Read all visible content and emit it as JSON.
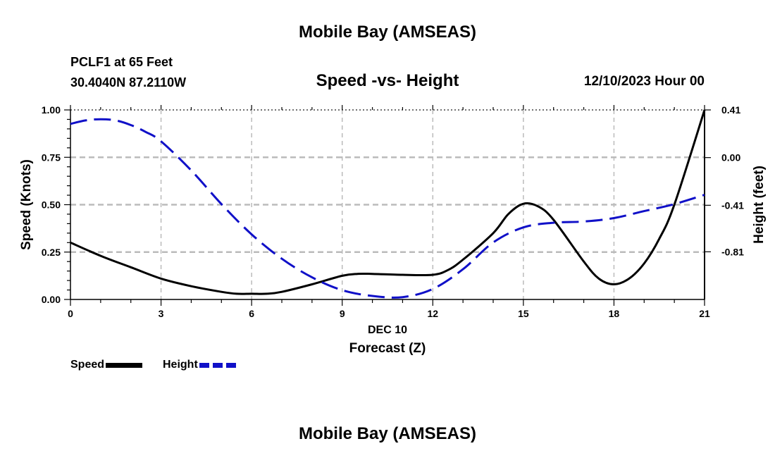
{
  "header": {
    "title": "Mobile Bay (AMSEAS)",
    "station": "PCLF1 at 65 Feet",
    "coords": "30.4040N  87.2110W",
    "chart_title": "Speed -vs- Height",
    "date": "12/10/2023 Hour 00"
  },
  "footer": {
    "title": "Mobile Bay (AMSEAS)"
  },
  "legend": {
    "speed_label": "Speed",
    "height_label": "Height"
  },
  "colors": {
    "speed": "#000000",
    "height": "#1010c8",
    "grid": "#bbbbbb"
  },
  "chart_data": {
    "type": "line",
    "title": "Speed -vs- Height",
    "xlabel": "Forecast (Z)",
    "xlabel_date": "DEC 10",
    "ylabel": "Speed (Knots)",
    "y2label": "Height (feet)",
    "xlim": [
      0,
      21
    ],
    "ylim": [
      0,
      1
    ],
    "y2lim": [
      -1.22,
      0.41
    ],
    "x_ticks": [
      0,
      3,
      6,
      9,
      12,
      15,
      18,
      21
    ],
    "x_tick_labels": [
      "0",
      "3",
      "6",
      "9",
      "12",
      "15",
      "18",
      "21"
    ],
    "y_ticks": [
      0,
      0.25,
      0.5,
      0.75,
      1.0
    ],
    "y_tick_labels": [
      "0.00",
      "0.25",
      "0.50",
      "0.75",
      "1.00"
    ],
    "y2_ticks": [
      0.41,
      0.0,
      -0.41,
      -0.81
    ],
    "y2_tick_labels": [
      "0.41",
      "0.00",
      "-0.41",
      "-0.81"
    ],
    "grid": true,
    "series": [
      {
        "name": "Speed",
        "axis": "left",
        "style": "solid",
        "x": [
          0,
          1,
          2,
          3,
          4,
          5,
          5.5,
          6,
          6.5,
          7,
          8,
          9,
          9.5,
          10,
          11,
          12,
          12.5,
          13,
          14,
          14.5,
          15,
          15.5,
          16,
          17,
          17.5,
          18,
          18.5,
          19,
          19.5,
          20,
          21
        ],
        "values": [
          0.3,
          0.23,
          0.17,
          0.11,
          0.07,
          0.04,
          0.03,
          0.03,
          0.03,
          0.04,
          0.08,
          0.125,
          0.135,
          0.135,
          0.13,
          0.13,
          0.155,
          0.21,
          0.35,
          0.45,
          0.505,
          0.49,
          0.42,
          0.2,
          0.11,
          0.08,
          0.11,
          0.19,
          0.32,
          0.5,
          1.0
        ]
      },
      {
        "name": "Height",
        "axis": "right",
        "style": "dashed",
        "x": [
          0,
          0.5,
          1,
          1.5,
          2,
          2.5,
          3,
          4,
          5,
          6,
          7,
          8,
          9,
          10,
          11,
          12,
          13,
          14,
          15,
          16,
          17,
          18,
          19,
          20,
          21
        ],
        "values": [
          0.29,
          0.32,
          0.33,
          0.32,
          0.28,
          0.22,
          0.14,
          -0.11,
          -0.4,
          -0.66,
          -0.87,
          -1.03,
          -1.14,
          -1.19,
          -1.2,
          -1.13,
          -0.96,
          -0.73,
          -0.6,
          -0.56,
          -0.55,
          -0.52,
          -0.46,
          -0.4,
          -0.32
        ]
      }
    ]
  }
}
